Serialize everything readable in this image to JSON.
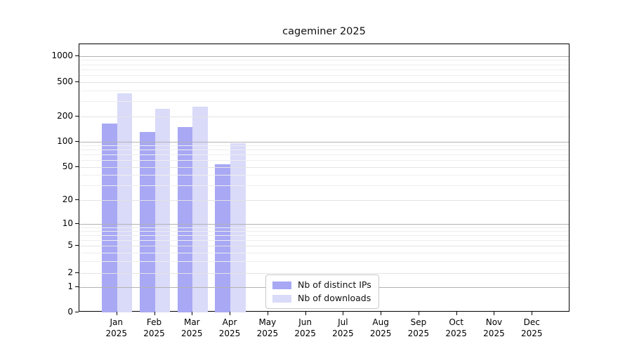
{
  "title": "cageminer 2025",
  "chart_data": {
    "type": "bar",
    "categories": [
      "Jan 2025",
      "Feb 2025",
      "Mar 2025",
      "Apr 2025",
      "May 2025",
      "Jun 2025",
      "Jul 2025",
      "Aug 2025",
      "Sep 2025",
      "Oct 2025",
      "Nov 2025",
      "Dec 2025"
    ],
    "series": [
      {
        "name": "Nb of distinct IPs",
        "color": "#a8a8f5",
        "values": [
          165,
          130,
          150,
          54,
          null,
          null,
          null,
          null,
          null,
          null,
          null,
          null
        ]
      },
      {
        "name": "Nb of downloads",
        "color": "#dadaf9",
        "values": [
          370,
          245,
          260,
          96,
          null,
          null,
          null,
          null,
          null,
          null,
          null,
          null
        ]
      }
    ],
    "yscale": "symlog",
    "yticks": [
      0,
      1,
      2,
      5,
      10,
      20,
      50,
      100,
      200,
      500,
      1000
    ],
    "ylim": [
      0,
      1400
    ],
    "grid": true,
    "legend_position": "lower center"
  },
  "colors": {
    "grid_decade": "#b2b2b2",
    "grid_major": "#e3e3e3",
    "grid_minor": "#eeeeee",
    "axis": "#000000",
    "background": "#ffffff"
  }
}
